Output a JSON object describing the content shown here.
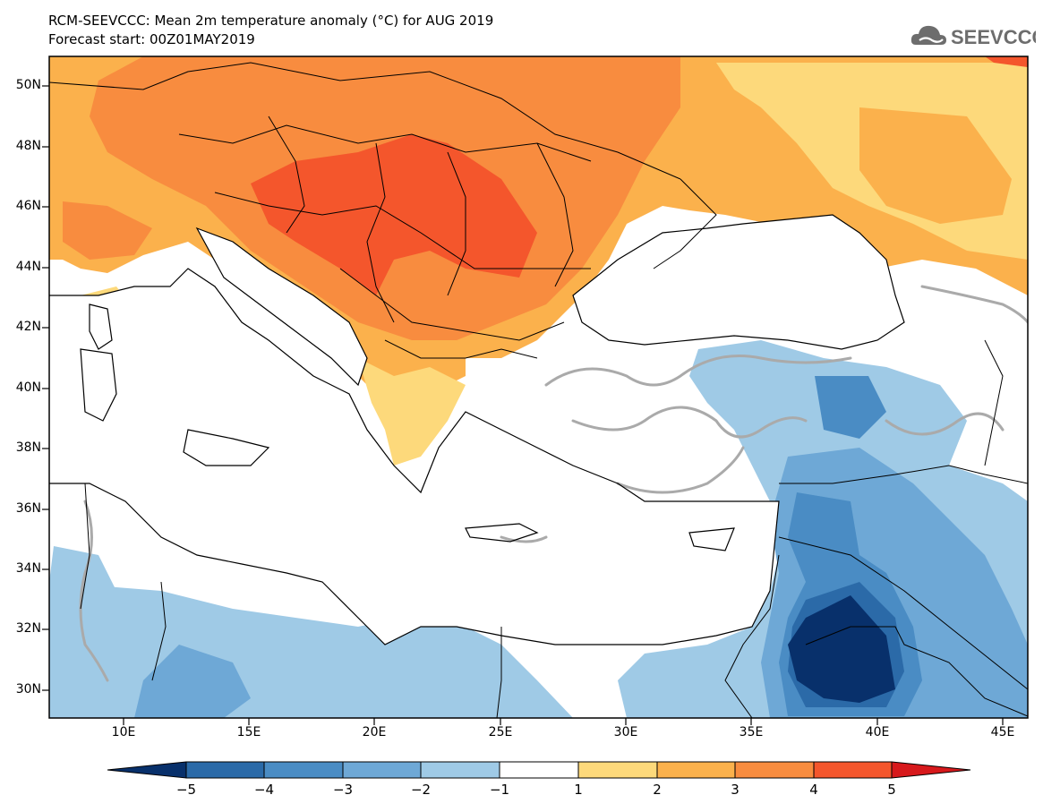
{
  "header": {
    "title": "RCM-SEEVCCC: Mean 2m temperature anomaly (°C) for AUG 2019",
    "subtitle": "Forecast start: 00Z01MAY2019",
    "logo_text": "SEEVCCC"
  },
  "map": {
    "type": "filled-contour",
    "lon_range": [
      7,
      46
    ],
    "lat_range": [
      29,
      51
    ],
    "lat_labels": [
      "50N",
      "48N",
      "46N",
      "44N",
      "42N",
      "40N",
      "38N",
      "36N",
      "34N",
      "32N",
      "30N"
    ],
    "lon_labels": [
      "10E",
      "15E",
      "20E",
      "25E",
      "30E",
      "35E",
      "40E",
      "45E"
    ]
  },
  "colorbar": {
    "levels": [
      "−5",
      "−4",
      "−3",
      "−2",
      "−1",
      "1",
      "2",
      "3",
      "4",
      "5"
    ],
    "colors": [
      "#08306b",
      "#2b6aa8",
      "#4a8cc4",
      "#6ea8d6",
      "#9fcae6",
      "#ffffff",
      "#fdd97b",
      "#fbb14c",
      "#f88c3f",
      "#f4562c",
      "#d7191c"
    ]
  }
}
